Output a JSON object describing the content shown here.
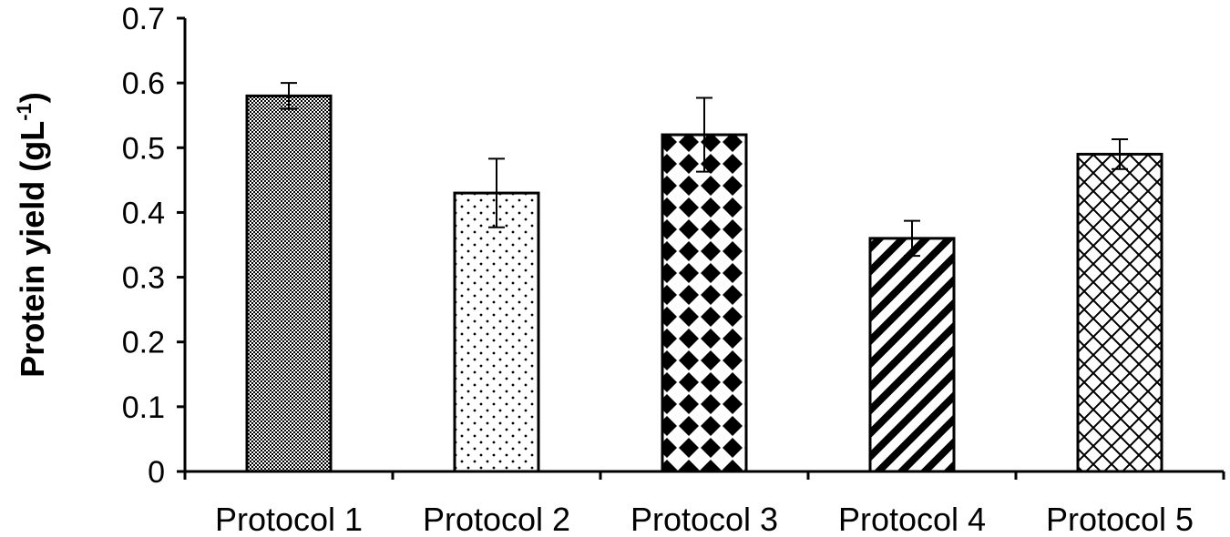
{
  "chart_data": {
    "type": "bar",
    "title": "",
    "xlabel": "",
    "ylabel": "Protein yield (gL",
    "ylabel_superscript": "-1",
    "ylabel_suffix": ")",
    "ylim": [
      0,
      0.7
    ],
    "yticks": [
      0,
      0.1,
      0.2,
      0.3,
      0.4,
      0.5,
      0.6,
      0.7
    ],
    "ytick_labels": [
      "0",
      "0.1",
      "0.2",
      "0.3",
      "0.4",
      "0.5",
      "0.6",
      "0.7"
    ],
    "categories": [
      "Protocol 1",
      "Protocol 2",
      "Protocol 3",
      "Protocol 4",
      "Protocol 5"
    ],
    "values": [
      0.58,
      0.43,
      0.52,
      0.36,
      0.49
    ],
    "error": [
      0.02,
      0.053,
      0.057,
      0.027,
      0.023
    ],
    "patterns": [
      "fine-checker",
      "dots",
      "diamonds",
      "diagonal-stripes",
      "diamond-lattice"
    ],
    "grid": false,
    "legend": "none",
    "colors": {
      "bar_fill": "#ffffff",
      "stroke": "#000000"
    }
  }
}
